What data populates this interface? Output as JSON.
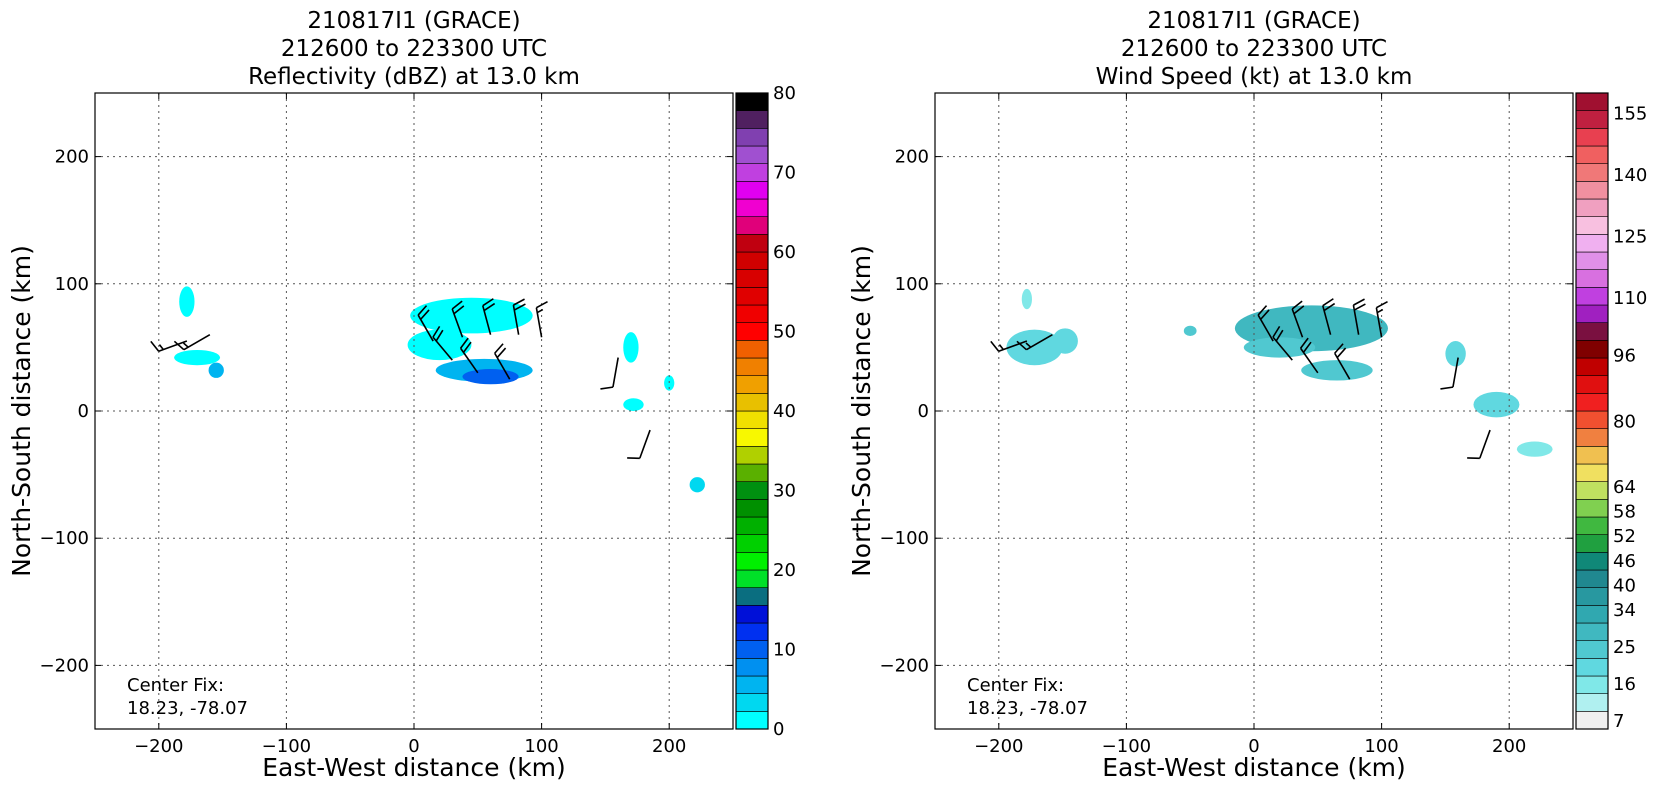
{
  "chart_data": [
    {
      "type": "heatmap",
      "title_lines": [
        "210817I1 (GRACE)",
        "212600 to 223300 UTC",
        "Reflectivity (dBZ) at 13.0 km"
      ],
      "xlabel": "East-West distance (km)",
      "ylabel": "North-South distance (km)",
      "xlim": [
        -250,
        250
      ],
      "ylim": [
        -250,
        250
      ],
      "xticks": [
        -200,
        -100,
        0,
        100,
        200
      ],
      "yticks": [
        -200,
        -100,
        0,
        100,
        200
      ],
      "grid": true,
      "annotation_lines": [
        "Center Fix:",
        "18.23, -78.07"
      ],
      "colorbar": {
        "min": 0,
        "max": 80,
        "tick_values": [
          0,
          10,
          20,
          30,
          40,
          50,
          60,
          70,
          80
        ],
        "tick_labels": [
          "0",
          "10",
          "20",
          "30",
          "40",
          "50",
          "60",
          "70",
          "80"
        ],
        "colors": [
          "#00ffff",
          "#00d8f0",
          "#00b4f0",
          "#0090f0",
          "#0060f0",
          "#0030f0",
          "#0010d8",
          "#0a6e80",
          "#00e028",
          "#00f000",
          "#00d000",
          "#00b000",
          "#009000",
          "#009010",
          "#5ab000",
          "#b0d000",
          "#f8f800",
          "#f0e000",
          "#e8c000",
          "#f0a000",
          "#f08000",
          "#f06000",
          "#ff0000",
          "#f00000",
          "#e00000",
          "#d80000",
          "#d00000",
          "#c00010",
          "#e0007a",
          "#f000d0",
          "#e000f0",
          "#c040e0",
          "#a050d0",
          "#8040b0",
          "#502060",
          "#000000"
        ]
      },
      "field_regions": [
        {
          "cx": -178,
          "cy": 86,
          "rx": 6,
          "ry": 12,
          "value": 2
        },
        {
          "cx": -170,
          "cy": 42,
          "rx": 18,
          "ry": 6,
          "value": 2
        },
        {
          "cx": -155,
          "cy": 32,
          "rx": 6,
          "ry": 6,
          "value": 6
        },
        {
          "cx": 45,
          "cy": 75,
          "rx": 48,
          "ry": 14,
          "value": 2
        },
        {
          "cx": 20,
          "cy": 52,
          "rx": 25,
          "ry": 12,
          "value": 2
        },
        {
          "cx": 55,
          "cy": 32,
          "rx": 38,
          "ry": 9,
          "value": 6
        },
        {
          "cx": 60,
          "cy": 27,
          "rx": 22,
          "ry": 6,
          "value": 9
        },
        {
          "cx": 170,
          "cy": 50,
          "rx": 6,
          "ry": 12,
          "value": 2
        },
        {
          "cx": 172,
          "cy": 5,
          "rx": 8,
          "ry": 5,
          "value": 2
        },
        {
          "cx": 200,
          "cy": 22,
          "rx": 4,
          "ry": 6,
          "value": 2
        },
        {
          "cx": 222,
          "cy": -58,
          "rx": 6,
          "ry": 6,
          "value": 3
        }
      ],
      "barbs": [
        {
          "x": -178,
          "y": 55,
          "dir": 250,
          "speed": 15
        },
        {
          "x": -160,
          "y": 60,
          "dir": 240,
          "speed": 15
        },
        {
          "x": 15,
          "y": 55,
          "dir": 330,
          "speed": 20
        },
        {
          "x": 38,
          "y": 58,
          "dir": 340,
          "speed": 20
        },
        {
          "x": 60,
          "y": 60,
          "dir": 345,
          "speed": 20
        },
        {
          "x": 82,
          "y": 60,
          "dir": 350,
          "speed": 20
        },
        {
          "x": 100,
          "y": 58,
          "dir": 350,
          "speed": 15
        },
        {
          "x": 30,
          "y": 40,
          "dir": 320,
          "speed": 20
        },
        {
          "x": 50,
          "y": 30,
          "dir": 325,
          "speed": 20
        },
        {
          "x": 75,
          "y": 25,
          "dir": 330,
          "speed": 20
        },
        {
          "x": 160,
          "y": 42,
          "dir": 190,
          "speed": 10
        },
        {
          "x": 185,
          "y": -15,
          "dir": 200,
          "speed": 10
        }
      ]
    },
    {
      "type": "heatmap",
      "title_lines": [
        "210817I1 (GRACE)",
        "212600 to 223300 UTC",
        "Wind Speed (kt) at 13.0 km"
      ],
      "xlabel": "East-West distance (km)",
      "ylabel": "North-South distance (km)",
      "xlim": [
        -250,
        250
      ],
      "ylim": [
        -250,
        250
      ],
      "xticks": [
        -200,
        -100,
        0,
        100,
        200
      ],
      "yticks": [
        -200,
        -100,
        0,
        100,
        200
      ],
      "grid": true,
      "annotation_lines": [
        "Center Fix:",
        "18.23, -78.07"
      ],
      "colorbar": {
        "min": 5,
        "max": 160,
        "tick_values": [
          7,
          16,
          25,
          34,
          40,
          46,
          52,
          58,
          64,
          80,
          96,
          110,
          125,
          140,
          155
        ],
        "tick_labels": [
          "7",
          "16",
          "25",
          "34",
          "40",
          "46",
          "52",
          "58",
          "64",
          "80",
          "96",
          "110",
          "125",
          "140",
          "155"
        ],
        "colors": [
          "#f0f0f0",
          "#b0f0f0",
          "#80e8e8",
          "#60d8e0",
          "#50c8d0",
          "#40b8c0",
          "#30a8b0",
          "#2898a0",
          "#208890",
          "#108878",
          "#20a040",
          "#40b840",
          "#80d050",
          "#c0e060",
          "#f0e060",
          "#f0c050",
          "#f08040",
          "#f05030",
          "#f02020",
          "#e01010",
          "#c00000",
          "#800000",
          "#7a1040",
          "#a020c0",
          "#c040e0",
          "#d870e0",
          "#e090e8",
          "#f0b0f0",
          "#f8c0e0",
          "#f0a0c0",
          "#f090a0",
          "#f07878",
          "#f06060",
          "#e84050",
          "#c02040",
          "#a01030"
        ]
      },
      "field_regions": [
        {
          "cx": -178,
          "cy": 88,
          "rx": 4,
          "ry": 8,
          "value": 16
        },
        {
          "cx": -172,
          "cy": 50,
          "rx": 22,
          "ry": 14,
          "value": 18
        },
        {
          "cx": -148,
          "cy": 55,
          "rx": 10,
          "ry": 10,
          "value": 20
        },
        {
          "cx": -50,
          "cy": 63,
          "rx": 5,
          "ry": 4,
          "value": 25
        },
        {
          "cx": 45,
          "cy": 65,
          "rx": 60,
          "ry": 18,
          "value": 28
        },
        {
          "cx": 20,
          "cy": 50,
          "rx": 28,
          "ry": 8,
          "value": 24
        },
        {
          "cx": 65,
          "cy": 32,
          "rx": 28,
          "ry": 8,
          "value": 26
        },
        {
          "cx": 158,
          "cy": 45,
          "rx": 8,
          "ry": 10,
          "value": 18
        },
        {
          "cx": 190,
          "cy": 5,
          "rx": 18,
          "ry": 10,
          "value": 18
        },
        {
          "cx": 220,
          "cy": -30,
          "rx": 14,
          "ry": 6,
          "value": 16
        }
      ],
      "barbs": [
        {
          "x": -178,
          "y": 55,
          "dir": 250,
          "speed": 15
        },
        {
          "x": -158,
          "y": 60,
          "dir": 240,
          "speed": 15
        },
        {
          "x": 15,
          "y": 55,
          "dir": 330,
          "speed": 20
        },
        {
          "x": 38,
          "y": 58,
          "dir": 340,
          "speed": 20
        },
        {
          "x": 60,
          "y": 60,
          "dir": 345,
          "speed": 20
        },
        {
          "x": 82,
          "y": 60,
          "dir": 350,
          "speed": 20
        },
        {
          "x": 100,
          "y": 58,
          "dir": 350,
          "speed": 15
        },
        {
          "x": 30,
          "y": 40,
          "dir": 320,
          "speed": 20
        },
        {
          "x": 50,
          "y": 30,
          "dir": 325,
          "speed": 20
        },
        {
          "x": 75,
          "y": 25,
          "dir": 330,
          "speed": 20
        },
        {
          "x": 160,
          "y": 42,
          "dir": 190,
          "speed": 10
        },
        {
          "x": 185,
          "y": -15,
          "dir": 200,
          "speed": 10
        }
      ]
    }
  ]
}
